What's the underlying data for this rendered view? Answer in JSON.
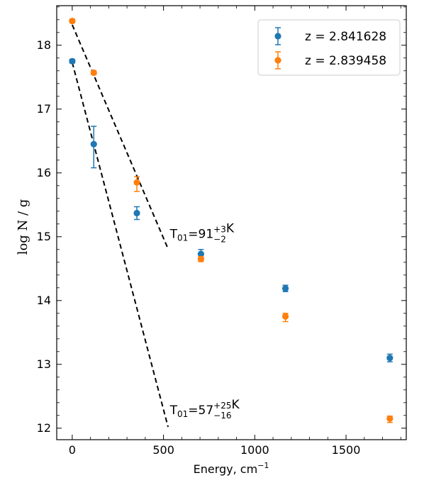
{
  "chart_data": {
    "type": "scatter",
    "xlabel": "Energy, cm",
    "xlabel_superscript": "−1",
    "ylabel": "log N / g",
    "xlim": [
      -85,
      1830
    ],
    "ylim": [
      11.82,
      18.62
    ],
    "xticks": [
      0,
      500,
      1000,
      1500
    ],
    "yticks": [
      12,
      13,
      14,
      15,
      16,
      17,
      18
    ],
    "grid": false,
    "legend_position": "top-right",
    "series": [
      {
        "name": "z = 2.841628",
        "color": "#1f77b4",
        "points": [
          {
            "x": 0,
            "y": 17.75,
            "err_low": 0.03,
            "err_high": 0.03
          },
          {
            "x": 118,
            "y": 16.45,
            "err_low": 0.37,
            "err_high": 0.28
          },
          {
            "x": 354,
            "y": 15.37,
            "err_low": 0.1,
            "err_high": 0.1
          },
          {
            "x": 705,
            "y": 14.73,
            "err_low": 0.07,
            "err_high": 0.07
          },
          {
            "x": 1168,
            "y": 14.19,
            "err_low": 0.05,
            "err_high": 0.05
          },
          {
            "x": 1740,
            "y": 13.1,
            "err_low": 0.06,
            "err_high": 0.06
          }
        ]
      },
      {
        "name": "z = 2.839458",
        "color": "#ff7f0e",
        "points": [
          {
            "x": 0,
            "y": 18.38,
            "err_low": 0.03,
            "err_high": 0.03
          },
          {
            "x": 118,
            "y": 17.57,
            "err_low": 0.03,
            "err_high": 0.03
          },
          {
            "x": 354,
            "y": 15.85,
            "err_low": 0.14,
            "err_high": 0.09
          },
          {
            "x": 705,
            "y": 14.65,
            "err_low": 0.04,
            "err_high": 0.04
          },
          {
            "x": 1168,
            "y": 13.75,
            "err_low": 0.08,
            "err_high": 0.05
          },
          {
            "x": 1740,
            "y": 12.15,
            "err_low": 0.06,
            "err_high": 0.04
          }
        ]
      }
    ],
    "fit_lines": [
      {
        "color": "#000000",
        "x": [
          0,
          525
        ],
        "y": [
          18.32,
          14.81
        ]
      },
      {
        "color": "#000000",
        "x": [
          0,
          525
        ],
        "y": [
          17.73,
          12.02
        ]
      }
    ],
    "annotations": [
      {
        "main": "T",
        "sub": "01",
        "value": "=91",
        "sup": "+3",
        "inf": "−2",
        "unit": "K",
        "x": 535,
        "y": 14.98
      },
      {
        "main": "T",
        "sub": "01",
        "value": "=57",
        "sup": "+25",
        "inf": "−16",
        "unit": "K",
        "x": 535,
        "y": 12.22
      }
    ]
  }
}
